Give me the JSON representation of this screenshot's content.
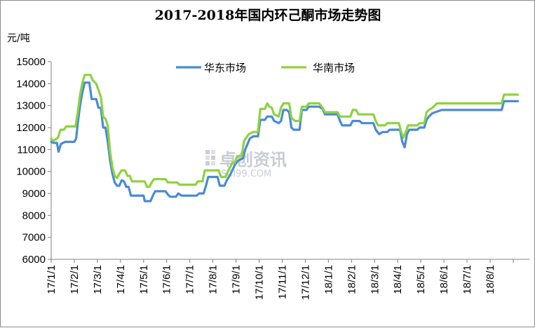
{
  "chart_data": {
    "type": "line",
    "title": "2017-2018年国内环己酮市场走势图",
    "ylabel": "元/吨",
    "ylim": [
      6000,
      15000
    ],
    "yticks": [
      6000,
      7000,
      8000,
      9000,
      10000,
      11000,
      12000,
      13000,
      14000,
      15000
    ],
    "xlim": [
      0,
      20.7
    ],
    "categories": [
      "17/1/1",
      "17/2/1",
      "17/3/1",
      "17/4/1",
      "17/5/1",
      "17/6/1",
      "17/7/1",
      "17/8/1",
      "17/9/1",
      "17/10/1",
      "17/11/1",
      "17/12/1",
      "18/1/1",
      "18/2/1",
      "18/3/1",
      "18/4/1",
      "18/5/1",
      "18/6/1",
      "18/7/1",
      "18/8/1"
    ],
    "grid": false,
    "legend_position": "top-center",
    "watermark": "卓创资讯 SCI99.COM",
    "series": [
      {
        "name": "华东市场",
        "color": "#4a8ad6",
        "points": [
          [
            0,
            11350
          ],
          [
            0.1,
            11300
          ],
          [
            0.25,
            11300
          ],
          [
            0.32,
            10900
          ],
          [
            0.42,
            11250
          ],
          [
            0.6,
            11350
          ],
          [
            1.0,
            11350
          ],
          [
            1.08,
            11500
          ],
          [
            1.15,
            12200
          ],
          [
            1.25,
            13000
          ],
          [
            1.35,
            13600
          ],
          [
            1.45,
            14050
          ],
          [
            1.65,
            14050
          ],
          [
            1.75,
            13300
          ],
          [
            1.95,
            13300
          ],
          [
            2.05,
            12900
          ],
          [
            2.15,
            12900
          ],
          [
            2.25,
            12000
          ],
          [
            2.35,
            12000
          ],
          [
            2.45,
            11350
          ],
          [
            2.55,
            10500
          ],
          [
            2.65,
            9900
          ],
          [
            2.75,
            9500
          ],
          [
            2.85,
            9350
          ],
          [
            2.95,
            9350
          ],
          [
            3.05,
            9600
          ],
          [
            3.15,
            9550
          ],
          [
            3.25,
            9300
          ],
          [
            3.35,
            9300
          ],
          [
            3.45,
            8900
          ],
          [
            3.75,
            8900
          ],
          [
            4.0,
            8900
          ],
          [
            4.05,
            8650
          ],
          [
            4.3,
            8650
          ],
          [
            4.4,
            8900
          ],
          [
            4.5,
            9100
          ],
          [
            4.95,
            9100
          ],
          [
            5.05,
            8950
          ],
          [
            5.15,
            8850
          ],
          [
            5.4,
            8850
          ],
          [
            5.5,
            9000
          ],
          [
            5.65,
            8900
          ],
          [
            6.3,
            8900
          ],
          [
            6.4,
            9000
          ],
          [
            6.6,
            9000
          ],
          [
            6.7,
            9350
          ],
          [
            6.8,
            9750
          ],
          [
            7.2,
            9750
          ],
          [
            7.3,
            9350
          ],
          [
            7.5,
            9350
          ],
          [
            7.6,
            9600
          ],
          [
            7.75,
            9850
          ],
          [
            7.95,
            10300
          ],
          [
            8.1,
            10500
          ],
          [
            8.3,
            10600
          ],
          [
            8.4,
            11000
          ],
          [
            8.6,
            11500
          ],
          [
            8.75,
            11600
          ],
          [
            8.95,
            11600
          ],
          [
            9.05,
            12350
          ],
          [
            9.25,
            12350
          ],
          [
            9.35,
            12500
          ],
          [
            9.55,
            12500
          ],
          [
            9.65,
            12300
          ],
          [
            9.85,
            12200
          ],
          [
            9.95,
            12300
          ],
          [
            10.05,
            12800
          ],
          [
            10.2,
            12800
          ],
          [
            10.3,
            12700
          ],
          [
            10.4,
            12000
          ],
          [
            10.5,
            11900
          ],
          [
            10.75,
            11900
          ],
          [
            10.85,
            12800
          ],
          [
            11.05,
            12800
          ],
          [
            11.15,
            12950
          ],
          [
            11.6,
            12950
          ],
          [
            11.75,
            12850
          ],
          [
            11.85,
            12600
          ],
          [
            12.4,
            12600
          ],
          [
            12.5,
            12300
          ],
          [
            12.6,
            12100
          ],
          [
            12.95,
            12100
          ],
          [
            13.05,
            12300
          ],
          [
            13.35,
            12300
          ],
          [
            13.45,
            12200
          ],
          [
            13.95,
            12200
          ],
          [
            14.05,
            11900
          ],
          [
            14.2,
            11700
          ],
          [
            14.35,
            11800
          ],
          [
            14.55,
            11800
          ],
          [
            14.65,
            11900
          ],
          [
            15.1,
            11900
          ],
          [
            15.2,
            11350
          ],
          [
            15.3,
            11100
          ],
          [
            15.4,
            11700
          ],
          [
            15.5,
            11900
          ],
          [
            15.85,
            11900
          ],
          [
            15.95,
            12000
          ],
          [
            16.15,
            12000
          ],
          [
            16.25,
            12350
          ],
          [
            16.35,
            12500
          ],
          [
            16.5,
            12650
          ],
          [
            16.9,
            12800
          ],
          [
            19.5,
            12800
          ],
          [
            19.6,
            13200
          ],
          [
            20.2,
            13200
          ]
        ]
      },
      {
        "name": "华南市场",
        "color": "#8ed23f",
        "points": [
          [
            0,
            11500
          ],
          [
            0.1,
            11400
          ],
          [
            0.3,
            11550
          ],
          [
            0.4,
            11900
          ],
          [
            0.55,
            11900
          ],
          [
            0.65,
            12050
          ],
          [
            1.05,
            12050
          ],
          [
            1.15,
            12700
          ],
          [
            1.25,
            13500
          ],
          [
            1.35,
            14050
          ],
          [
            1.45,
            14400
          ],
          [
            1.7,
            14400
          ],
          [
            1.8,
            14150
          ],
          [
            1.95,
            14000
          ],
          [
            2.05,
            13700
          ],
          [
            2.15,
            13400
          ],
          [
            2.25,
            12500
          ],
          [
            2.35,
            12400
          ],
          [
            2.45,
            12100
          ],
          [
            2.55,
            10900
          ],
          [
            2.65,
            10200
          ],
          [
            2.75,
            9800
          ],
          [
            2.85,
            9700
          ],
          [
            2.95,
            9900
          ],
          [
            3.05,
            10050
          ],
          [
            3.2,
            10050
          ],
          [
            3.3,
            9800
          ],
          [
            3.4,
            9800
          ],
          [
            3.5,
            9550
          ],
          [
            4.05,
            9550
          ],
          [
            4.15,
            9300
          ],
          [
            4.25,
            9300
          ],
          [
            4.35,
            9500
          ],
          [
            4.45,
            9650
          ],
          [
            4.95,
            9650
          ],
          [
            5.05,
            9500
          ],
          [
            5.45,
            9500
          ],
          [
            5.55,
            9400
          ],
          [
            6.25,
            9400
          ],
          [
            6.35,
            9550
          ],
          [
            6.55,
            9550
          ],
          [
            6.65,
            10050
          ],
          [
            7.25,
            10050
          ],
          [
            7.35,
            9750
          ],
          [
            7.55,
            9750
          ],
          [
            7.65,
            10000
          ],
          [
            7.85,
            10400
          ],
          [
            7.95,
            10400
          ],
          [
            8.05,
            10700
          ],
          [
            8.25,
            10700
          ],
          [
            8.35,
            11400
          ],
          [
            8.55,
            11700
          ],
          [
            8.75,
            11800
          ],
          [
            8.95,
            11800
          ],
          [
            9.05,
            12850
          ],
          [
            9.25,
            12850
          ],
          [
            9.35,
            13100
          ],
          [
            9.45,
            12950
          ],
          [
            9.55,
            12900
          ],
          [
            9.65,
            12600
          ],
          [
            9.85,
            12500
          ],
          [
            9.95,
            12900
          ],
          [
            10.05,
            13100
          ],
          [
            10.3,
            13100
          ],
          [
            10.4,
            12450
          ],
          [
            10.55,
            12300
          ],
          [
            10.75,
            12300
          ],
          [
            10.85,
            12950
          ],
          [
            11.05,
            12950
          ],
          [
            11.15,
            13100
          ],
          [
            11.6,
            13100
          ],
          [
            11.75,
            12900
          ],
          [
            11.85,
            12700
          ],
          [
            12.4,
            12700
          ],
          [
            12.5,
            12500
          ],
          [
            12.95,
            12500
          ],
          [
            13.05,
            12800
          ],
          [
            13.2,
            12800
          ],
          [
            13.3,
            12600
          ],
          [
            13.95,
            12600
          ],
          [
            14.05,
            12300
          ],
          [
            14.15,
            12100
          ],
          [
            14.45,
            12100
          ],
          [
            14.55,
            12200
          ],
          [
            15.05,
            12200
          ],
          [
            15.15,
            11800
          ],
          [
            15.25,
            11550
          ],
          [
            15.35,
            11800
          ],
          [
            15.45,
            12100
          ],
          [
            15.85,
            12100
          ],
          [
            15.95,
            12200
          ],
          [
            16.15,
            12200
          ],
          [
            16.25,
            12700
          ],
          [
            16.35,
            12800
          ],
          [
            16.5,
            12900
          ],
          [
            16.6,
            13000
          ],
          [
            16.7,
            13100
          ],
          [
            19.5,
            13100
          ],
          [
            19.6,
            13500
          ],
          [
            20.2,
            13500
          ]
        ]
      }
    ]
  }
}
